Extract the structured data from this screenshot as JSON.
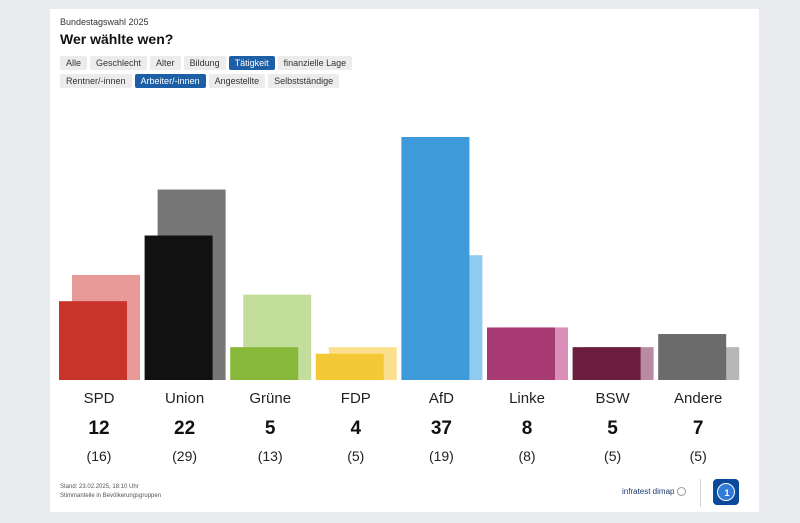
{
  "header": {
    "overline": "Bundestagswahl 2025",
    "title": "Wer wählte wen?"
  },
  "filters": {
    "row1": [
      {
        "label": "Alle",
        "active": false
      },
      {
        "label": "Geschlecht",
        "active": false
      },
      {
        "label": "Alter",
        "active": false
      },
      {
        "label": "Bildung",
        "active": false
      },
      {
        "label": "Tätigkeit",
        "active": true
      },
      {
        "label": "finanzielle Lage",
        "active": false
      }
    ],
    "row2": [
      {
        "label": "Rentner/-innen",
        "active": false
      },
      {
        "label": "Arbeiter/-innen",
        "active": true
      },
      {
        "label": "Angestellte",
        "active": false
      },
      {
        "label": "Selbstständige",
        "active": false
      }
    ]
  },
  "chart_data": {
    "type": "bar",
    "categories": [
      "SPD",
      "Union",
      "Grüne",
      "FDP",
      "AfD",
      "Linke",
      "BSW",
      "Andere"
    ],
    "series": [
      {
        "values": [
          12,
          22,
          5,
          4,
          37,
          8,
          5,
          7
        ]
      },
      {
        "values": [
          16,
          29,
          13,
          5,
          19,
          8,
          5,
          5
        ]
      }
    ],
    "current_colors": [
      "#c8332a",
      "#111111",
      "#87b83a",
      "#f5c936",
      "#3f9ad9",
      "#a83a73",
      "#6a1d3f",
      "#6b6b6b"
    ],
    "previous_colors": [
      "#e79a97",
      "#777777",
      "#c3dd9b",
      "#fbe18d",
      "#8fcaf0",
      "#d98fb8",
      "#b98aa3",
      "#b7b7b7"
    ],
    "value_labels": [
      "12",
      "22",
      "5",
      "4",
      "37",
      "8",
      "5",
      "7"
    ],
    "previous_labels": [
      "(16)",
      "(29)",
      "(13)",
      "(5)",
      "(19)",
      "(8)",
      "(5)",
      "(5)"
    ],
    "ylim": [
      0,
      37
    ],
    "grid": false
  },
  "footer": {
    "stand": "Stand: 23.02.2025, 18:10 Uhr",
    "note": "Stimmanteile in Bevölkerungsgruppen",
    "source": "infratest dimap"
  }
}
